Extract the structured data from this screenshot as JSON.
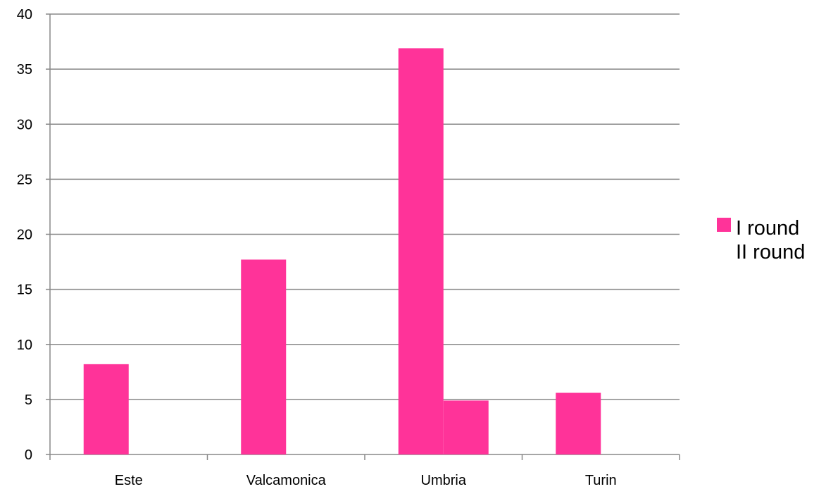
{
  "chart_data": {
    "type": "bar",
    "categories": [
      "Este",
      "Valcamonica",
      "Umbria",
      "Turin"
    ],
    "series": [
      {
        "name": "I round",
        "values": [
          8.2,
          17.7,
          36.9,
          5.6
        ],
        "color": "#ff3399"
      },
      {
        "name": "II round",
        "values": [
          0,
          0,
          4.9,
          0
        ],
        "color": "#ff3399"
      }
    ],
    "title": "",
    "xlabel": "",
    "ylabel": "",
    "ylim": [
      0,
      40
    ],
    "yticks": [
      0,
      5,
      10,
      15,
      20,
      25,
      30,
      35,
      40
    ],
    "grid": true,
    "legend_position": "right",
    "colors": {
      "bar": "#ff3399",
      "grid": "#888888",
      "axis": "#888888"
    }
  }
}
